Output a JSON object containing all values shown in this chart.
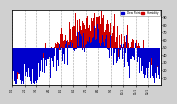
{
  "ylabel_right_values": [
    90,
    80,
    70,
    60,
    50,
    40,
    30,
    20,
    10
  ],
  "ylim": [
    0,
    100
  ],
  "background_color": "#d0d0d0",
  "plot_bg_color": "#ffffff",
  "blue_color": "#0000cc",
  "red_color": "#cc0000",
  "legend_blue_label": "Dew Point",
  "legend_red_label": "Humidity",
  "num_days": 365,
  "seed": 42,
  "midpoint": 50,
  "month_starts": [
    0,
    31,
    59,
    90,
    120,
    151,
    181,
    212,
    243,
    273,
    304,
    334
  ],
  "month_labels": [
    "1/1",
    "2/1",
    "3/1",
    "4/1",
    "5/1",
    "6/1",
    "7/1",
    "8/1",
    "9/1",
    "10/1",
    "11/1",
    "12/1"
  ]
}
